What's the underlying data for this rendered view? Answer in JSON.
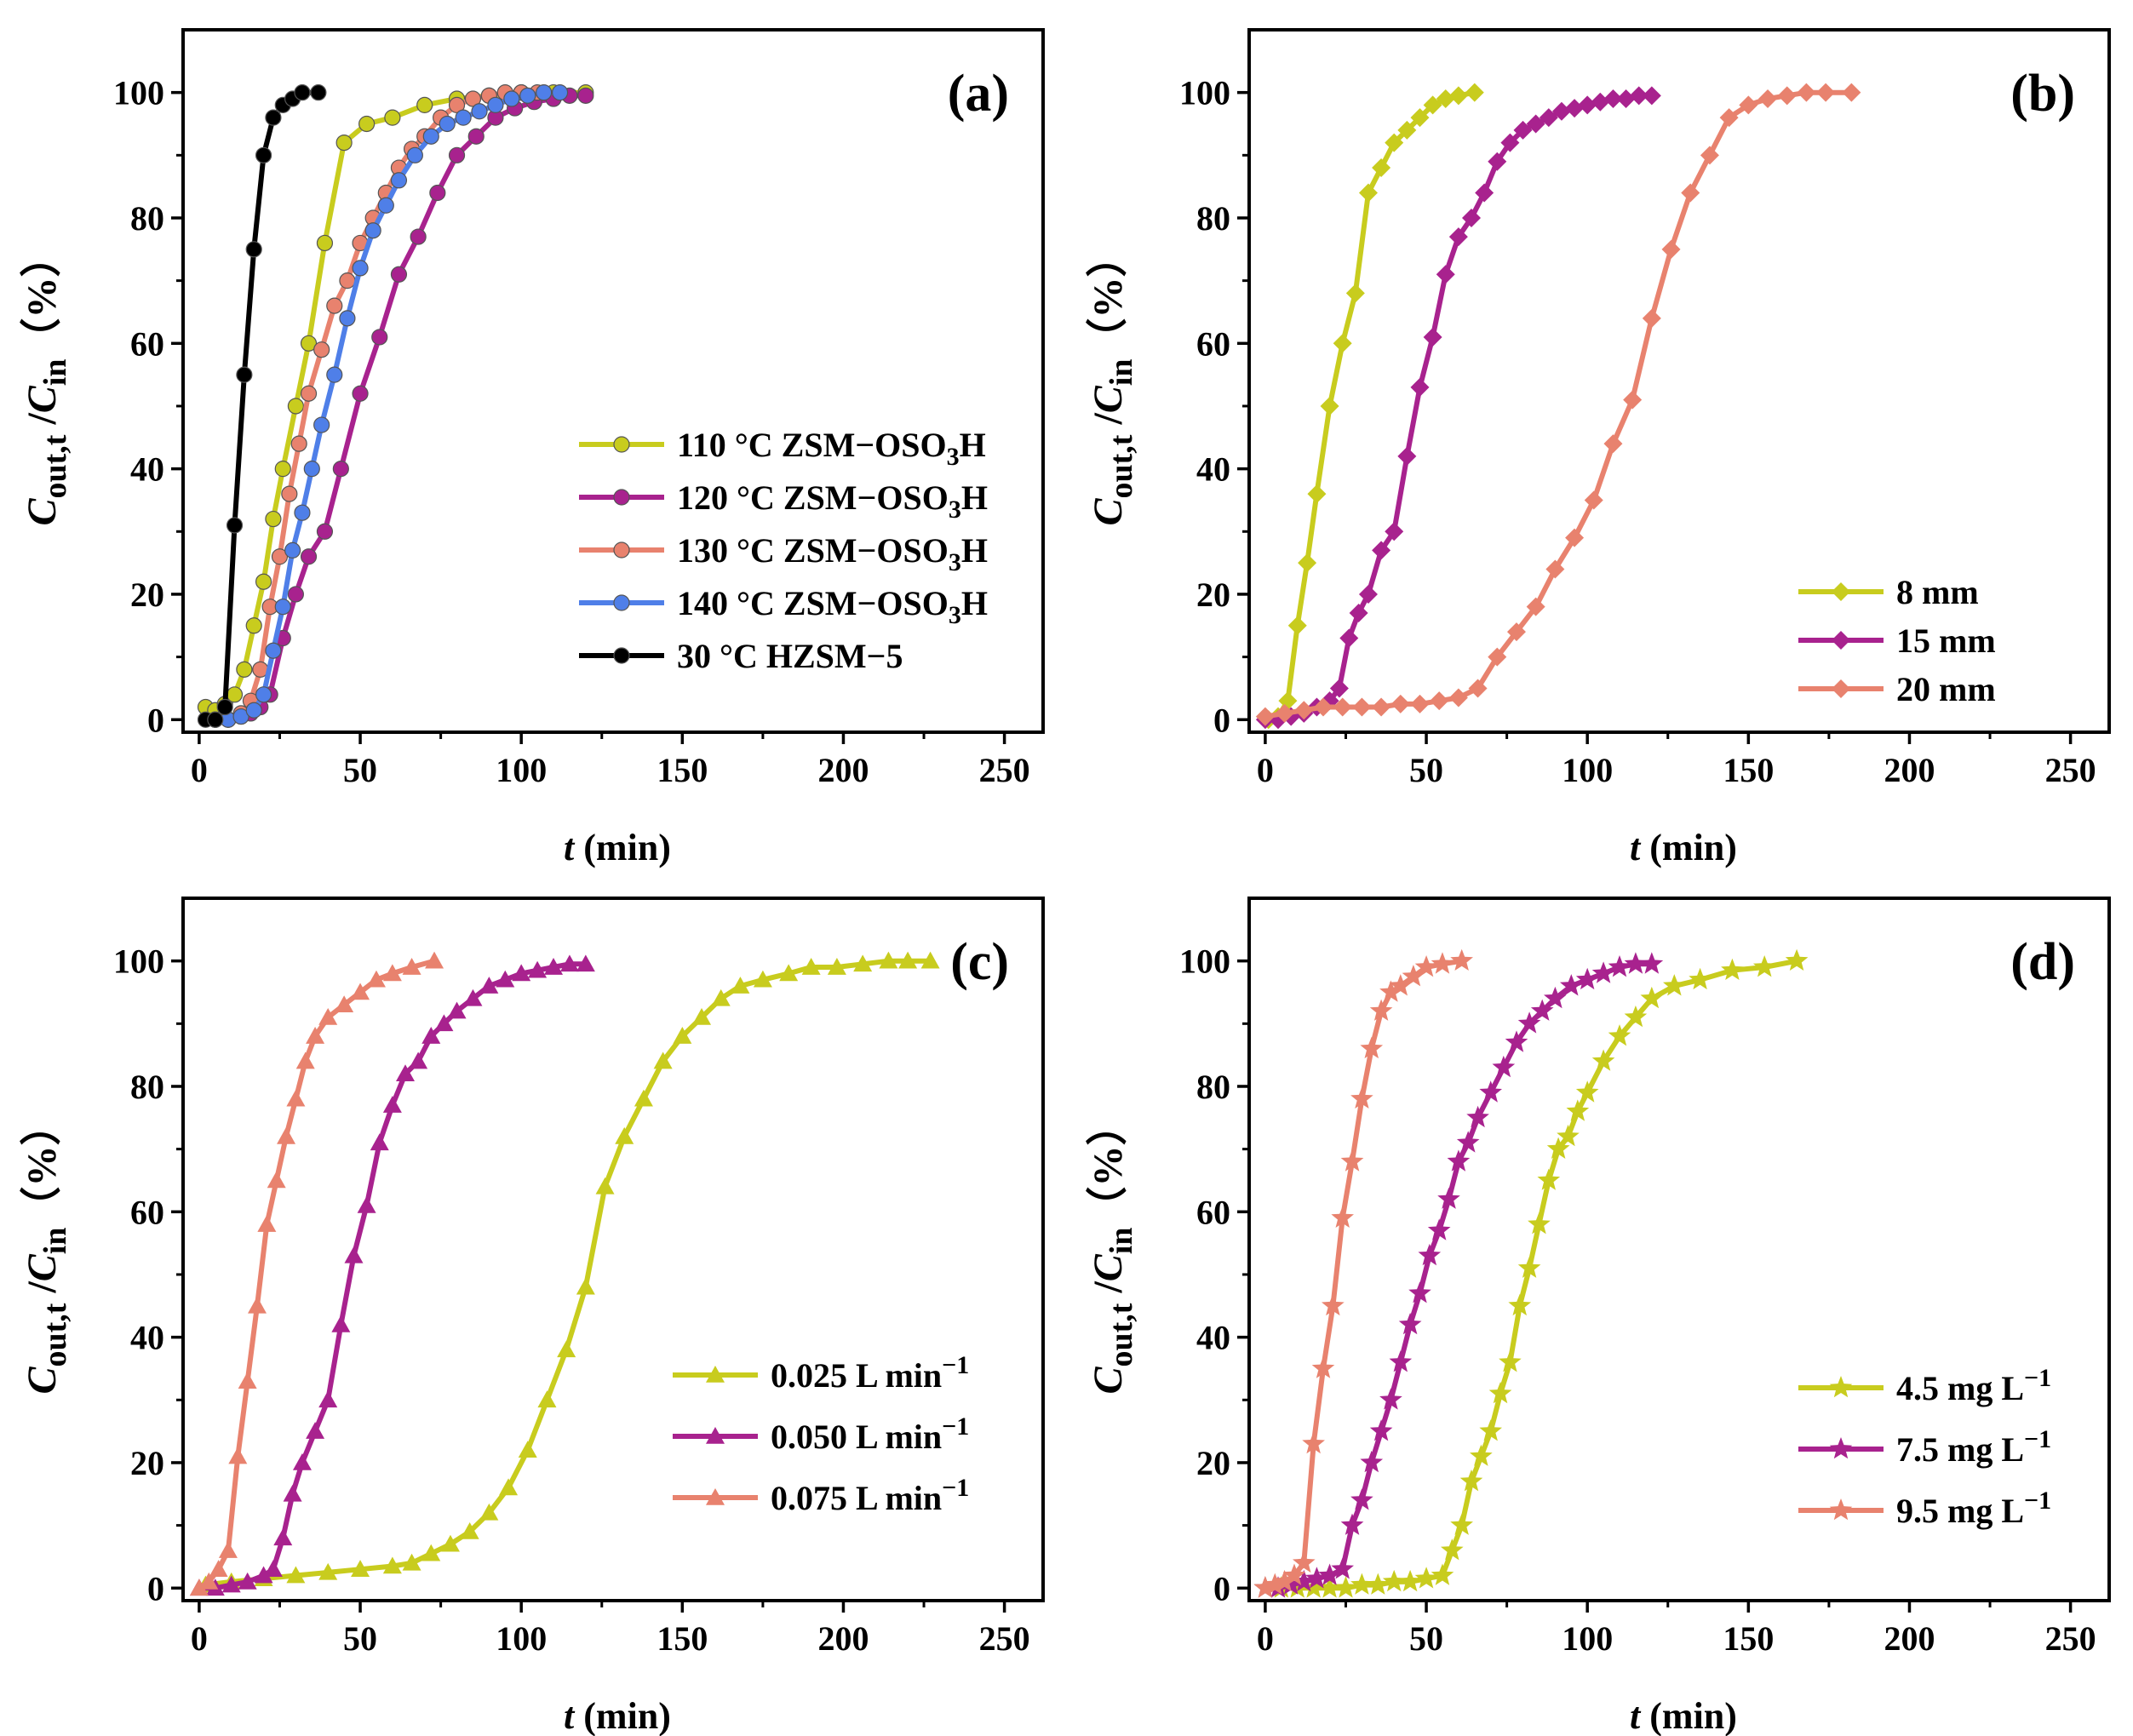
{
  "chart_data": [
    {
      "type": "line",
      "panel_label": "(a)",
      "xlabel": "t (min)",
      "ylabel": "Cout,t /Cin（%）",
      "xlim": [
        -5,
        262
      ],
      "ylim": [
        -2,
        110
      ],
      "xticks": [
        "0",
        "50",
        "100",
        "150",
        "200",
        "250"
      ],
      "yticks": [
        "0",
        "20",
        "40",
        "60",
        "80",
        "100"
      ],
      "legend_position": "center-right",
      "marker": "circle",
      "series": [
        {
          "name": "110 °C ZSM−OSO3H",
          "color": "#c8cc1e",
          "x": [
            2,
            5,
            8,
            11,
            14,
            17,
            20,
            23,
            26,
            30,
            34,
            39,
            45,
            52,
            60,
            70,
            80,
            90,
            100,
            110,
            120
          ],
          "y": [
            2,
            1.5,
            2.5,
            4,
            8,
            15,
            22,
            32,
            40,
            50,
            60,
            76,
            92,
            95,
            96,
            98,
            99,
            99.5,
            100,
            100,
            100
          ]
        },
        {
          "name": "120 °C ZSM−OSO3H",
          "color": "#a8228e",
          "x": [
            5,
            9,
            13,
            16,
            19,
            22,
            26,
            30,
            34,
            39,
            44,
            50,
            56,
            62,
            68,
            74,
            80,
            86,
            92,
            98,
            104,
            110,
            115,
            120
          ],
          "y": [
            0,
            0,
            0.5,
            1,
            2,
            4,
            13,
            20,
            26,
            30,
            40,
            52,
            61,
            71,
            77,
            84,
            90,
            93,
            96,
            97.5,
            98.5,
            99,
            99.5,
            99.5
          ]
        },
        {
          "name": "130 °C ZSM−OSO3H",
          "color": "#e8826e",
          "x": [
            5,
            9,
            13,
            16,
            19,
            22,
            25,
            28,
            31,
            34,
            38,
            42,
            46,
            50,
            54,
            58,
            62,
            66,
            70,
            75,
            80,
            85,
            90,
            95,
            100,
            105
          ],
          "y": [
            0,
            0,
            1,
            3,
            8,
            18,
            26,
            36,
            44,
            52,
            59,
            66,
            70,
            76,
            80,
            84,
            88,
            91,
            93,
            96,
            98,
            99,
            99.5,
            100,
            100,
            100
          ]
        },
        {
          "name": "140 °C ZSM−OSO3H",
          "color": "#4f7fe8",
          "x": [
            5,
            9,
            13,
            17,
            20,
            23,
            26,
            29,
            32,
            35,
            38,
            42,
            46,
            50,
            54,
            58,
            62,
            67,
            72,
            77,
            82,
            87,
            92,
            97,
            102,
            107,
            112
          ],
          "y": [
            0,
            0,
            0.5,
            1.5,
            4,
            11,
            18,
            27,
            33,
            40,
            47,
            55,
            64,
            72,
            78,
            82,
            86,
            90,
            93,
            95,
            96,
            97,
            98,
            99,
            99.5,
            100,
            100
          ]
        },
        {
          "name": "30 °C HZSM−5",
          "color": "#000000",
          "x": [
            2,
            5,
            8,
            11,
            14,
            17,
            20,
            23,
            26,
            29,
            32,
            37
          ],
          "y": [
            0,
            0,
            2,
            31,
            55,
            75,
            90,
            96,
            98,
            99,
            100,
            100
          ]
        }
      ]
    },
    {
      "type": "line",
      "panel_label": "(b)",
      "xlabel": "t (min)",
      "ylabel": "Cout,t /Cin（%）",
      "xlim": [
        -5,
        262
      ],
      "ylim": [
        -2,
        110
      ],
      "xticks": [
        "0",
        "50",
        "100",
        "150",
        "200",
        "250"
      ],
      "yticks": [
        "0",
        "20",
        "40",
        "60",
        "80",
        "100"
      ],
      "legend_position": "bottom-right",
      "marker": "diamond",
      "series": [
        {
          "name": "8 mm",
          "color": "#c8cc1e",
          "x": [
            1,
            4,
            7,
            10,
            13,
            16,
            20,
            24,
            28,
            32,
            36,
            40,
            44,
            48,
            52,
            56,
            60,
            65
          ],
          "y": [
            0,
            0.5,
            3,
            15,
            25,
            36,
            50,
            60,
            68,
            84,
            88,
            92,
            94,
            96,
            98,
            99,
            99.5,
            100
          ]
        },
        {
          "name": "15 mm",
          "color": "#a8228e",
          "x": [
            0,
            4,
            8,
            12,
            16,
            20,
            23,
            26,
            29,
            32,
            36,
            40,
            44,
            48,
            52,
            56,
            60,
            64,
            68,
            72,
            76,
            80,
            84,
            88,
            92,
            96,
            100,
            104,
            108,
            112,
            116,
            120
          ],
          "y": [
            0,
            0,
            0.5,
            1,
            2,
            3,
            5,
            13,
            17,
            20,
            27,
            30,
            42,
            53,
            61,
            71,
            77,
            80,
            84,
            89,
            92,
            94,
            95,
            96,
            97,
            97.5,
            98,
            98.5,
            99,
            99,
            99.5,
            99.5
          ]
        },
        {
          "name": "20 mm",
          "color": "#e8826e",
          "x": [
            0,
            6,
            12,
            18,
            24,
            30,
            36,
            42,
            48,
            54,
            60,
            66,
            72,
            78,
            84,
            90,
            96,
            102,
            108,
            114,
            120,
            126,
            132,
            138,
            144,
            150,
            156,
            162,
            168,
            174,
            182
          ],
          "y": [
            0.5,
            1,
            1.5,
            2,
            2,
            2,
            2,
            2.5,
            2.5,
            3,
            3.5,
            5,
            10,
            14,
            18,
            24,
            29,
            35,
            44,
            51,
            64,
            75,
            84,
            90,
            96,
            98,
            99,
            99.5,
            100,
            100,
            100
          ]
        }
      ]
    },
    {
      "type": "line",
      "panel_label": "(c)",
      "xlabel": "t (min)",
      "ylabel": "Cout,t /Cin（%）",
      "xlim": [
        -5,
        262
      ],
      "ylim": [
        -2,
        110
      ],
      "xticks": [
        "0",
        "50",
        "100",
        "150",
        "200",
        "250"
      ],
      "yticks": [
        "0",
        "20",
        "40",
        "60",
        "80",
        "100"
      ],
      "legend_position": "bottom-right",
      "marker": "triangle",
      "series": [
        {
          "name": "0.025 L min−1",
          "color": "#c8cc1e",
          "x": [
            2,
            10,
            20,
            30,
            40,
            50,
            60,
            66,
            72,
            78,
            84,
            90,
            96,
            102,
            108,
            114,
            120,
            126,
            132,
            138,
            144,
            150,
            156,
            162,
            168,
            175,
            183,
            190,
            198,
            206,
            214,
            220,
            227
          ],
          "y": [
            0.5,
            1,
            1.5,
            2,
            2.5,
            3,
            3.5,
            4,
            5.5,
            7,
            9,
            12,
            16,
            22,
            30,
            38,
            48,
            64,
            72,
            78,
            84,
            88,
            91,
            94,
            96,
            97,
            98,
            99,
            99,
            99.5,
            100,
            100,
            100
          ]
        },
        {
          "name": "0.050 L min−1",
          "color": "#a8228e",
          "x": [
            0,
            5,
            10,
            15,
            20,
            23,
            26,
            29,
            32,
            36,
            40,
            44,
            48,
            52,
            56,
            60,
            64,
            68,
            72,
            76,
            80,
            85,
            90,
            95,
            100,
            105,
            110,
            115,
            120
          ],
          "y": [
            0,
            0,
            0.5,
            1,
            2,
            3,
            8,
            15,
            20,
            25,
            30,
            42,
            53,
            61,
            71,
            77,
            82,
            84,
            88,
            90,
            92,
            94,
            96,
            97,
            98,
            98.5,
            99,
            99.5,
            99.5
          ]
        },
        {
          "name": "0.075 L min−1",
          "color": "#e8826e",
          "x": [
            0,
            3,
            6,
            9,
            12,
            15,
            18,
            21,
            24,
            27,
            30,
            33,
            36,
            40,
            45,
            50,
            55,
            60,
            66,
            73
          ],
          "y": [
            0,
            1,
            3,
            6,
            21,
            33,
            45,
            58,
            65,
            72,
            78,
            84,
            88,
            91,
            93,
            95,
            97,
            98,
            99,
            100
          ]
        }
      ]
    },
    {
      "type": "line",
      "panel_label": "(d)",
      "xlabel": "t (min)",
      "ylabel": "Cout,t /Cin（%）",
      "xlim": [
        -5,
        262
      ],
      "ylim": [
        -2,
        110
      ],
      "xticks": [
        "0",
        "50",
        "100",
        "150",
        "200",
        "250"
      ],
      "yticks": [
        "0",
        "20",
        "40",
        "60",
        "80",
        "100"
      ],
      "legend_position": "bottom-right",
      "marker": "star",
      "series": [
        {
          "name": "4.5 mg L−1",
          "color": "#c8cc1e",
          "x": [
            0,
            5,
            10,
            15,
            20,
            25,
            30,
            35,
            40,
            45,
            50,
            55,
            58,
            61,
            64,
            67,
            70,
            73,
            76,
            79,
            82,
            85,
            88,
            91,
            94,
            97,
            100,
            105,
            110,
            115,
            120,
            127,
            135,
            145,
            155,
            165
          ],
          "y": [
            0,
            0,
            0,
            0,
            0,
            0,
            0.5,
            0.5,
            1,
            1,
            1.5,
            2,
            6,
            10,
            17,
            21,
            25,
            31,
            36,
            45,
            51,
            58,
            65,
            70,
            72,
            76,
            79,
            84,
            88,
            91,
            94,
            96,
            97,
            98.5,
            99,
            100
          ]
        },
        {
          "name": "7.5 mg L−1",
          "color": "#a8228e",
          "x": [
            0,
            4,
            8,
            12,
            16,
            20,
            24,
            27,
            30,
            33,
            36,
            39,
            42,
            45,
            48,
            51,
            54,
            57,
            60,
            63,
            66,
            70,
            74,
            78,
            82,
            86,
            90,
            95,
            100,
            105,
            110,
            115,
            120
          ],
          "y": [
            0,
            0,
            0.5,
            1,
            1.5,
            2,
            3,
            10,
            14,
            20,
            25,
            30,
            36,
            42,
            47,
            53,
            57,
            62,
            68,
            71,
            75,
            79,
            83,
            87,
            90,
            92,
            94,
            96,
            97,
            98,
            99,
            99.5,
            99.5
          ]
        },
        {
          "name": "9.5 mg L−1",
          "color": "#e8826e",
          "x": [
            0,
            3,
            6,
            9,
            12,
            15,
            18,
            21,
            24,
            27,
            30,
            33,
            36,
            39,
            42,
            46,
            50,
            55,
            61
          ],
          "y": [
            0,
            0.5,
            1,
            2,
            4,
            23,
            35,
            45,
            59,
            68,
            78,
            86,
            92,
            95,
            96,
            97.5,
            99,
            99.5,
            100
          ]
        }
      ]
    }
  ]
}
